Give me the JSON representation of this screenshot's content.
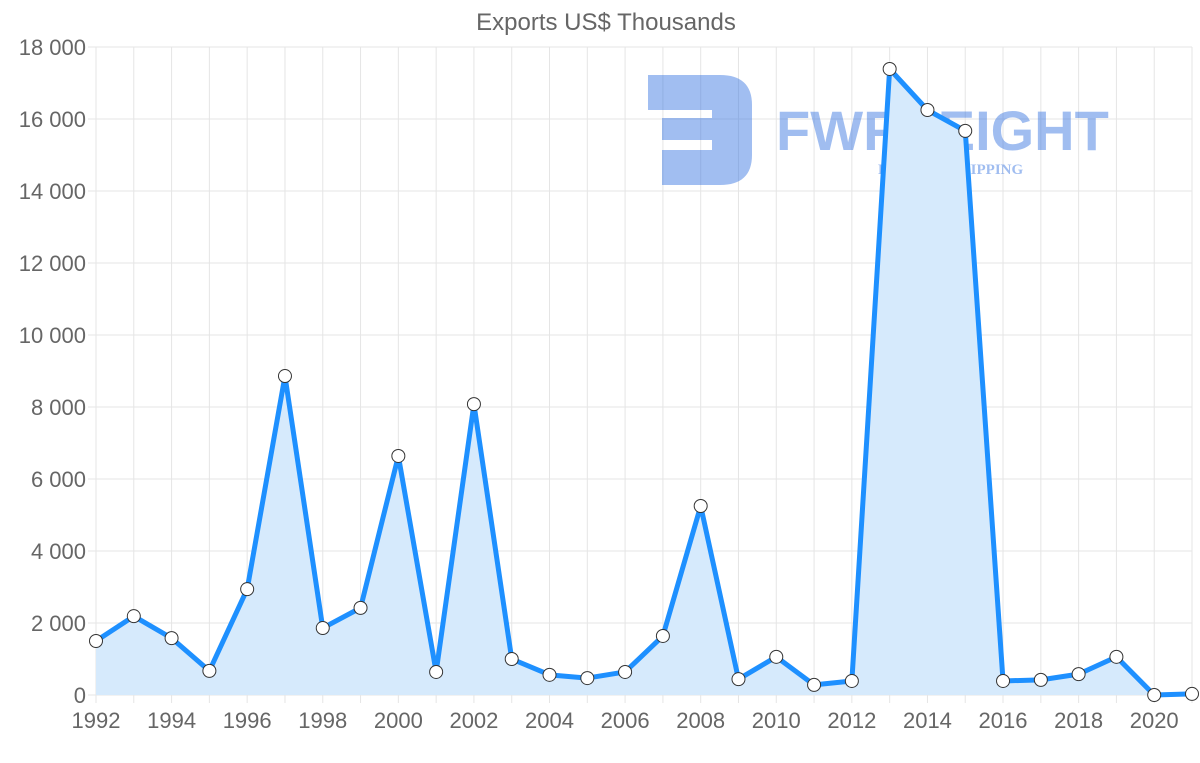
{
  "chart_data": {
    "type": "line",
    "title": "Exports US$ Thousands",
    "xlabel": "",
    "ylabel": "",
    "x": [
      1992,
      1993,
      1994,
      1995,
      1996,
      1997,
      1998,
      1999,
      2000,
      2001,
      2002,
      2003,
      2004,
      2005,
      2006,
      2007,
      2008,
      2009,
      2010,
      2011,
      2012,
      2013,
      2014,
      2015,
      2016,
      2017,
      2018,
      2019,
      2020,
      2021
    ],
    "series": [
      {
        "name": "Exports US$ Thousands",
        "values": [
          1500,
          2190,
          1580,
          670,
          2940,
          8860,
          1860,
          2420,
          6640,
          640,
          8080,
          1000,
          560,
          470,
          640,
          1640,
          5250,
          440,
          1060,
          280,
          390,
          17390,
          16250,
          15670,
          390,
          420,
          580,
          1060,
          0,
          30
        ]
      }
    ],
    "xlim": [
      1992,
      2021
    ],
    "ylim": [
      0,
      18000
    ],
    "yticks": [
      0,
      2000,
      4000,
      6000,
      8000,
      10000,
      12000,
      14000,
      16000,
      18000
    ],
    "ytick_labels": [
      "0",
      "2 000",
      "4 000",
      "6 000",
      "8 000",
      "10 000",
      "12 000",
      "14 000",
      "16 000",
      "18 000"
    ],
    "xticks": [
      1992,
      1994,
      1996,
      1998,
      2000,
      2002,
      2004,
      2006,
      2008,
      2010,
      2012,
      2014,
      2016,
      2018,
      2020
    ],
    "grid": true,
    "filled": true,
    "colors": {
      "line": "#1e90ff",
      "fill": "#d6eafc",
      "grid": "#e5e5e5",
      "marker_fill": "#ffffff",
      "marker_stroke": "#333333"
    }
  },
  "watermark": {
    "brand": "FWFREIGHT",
    "tagline": "FREIGHT SHIPPING"
  }
}
